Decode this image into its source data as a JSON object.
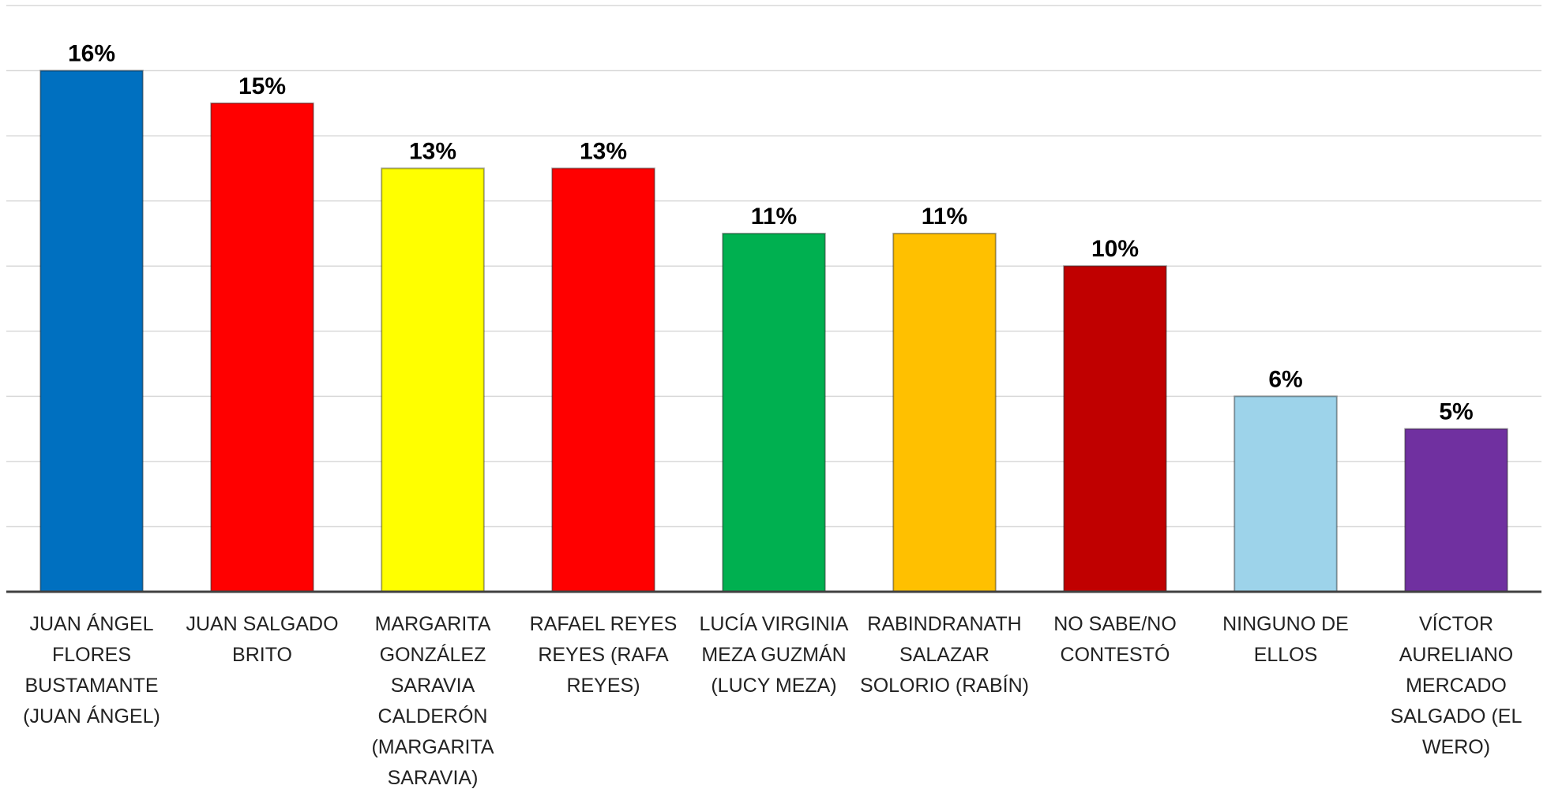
{
  "chart_data": {
    "type": "bar",
    "categories": [
      "JUAN ÁNGEL FLORES BUSTAMANTE (JUAN ÁNGEL)",
      "JUAN SALGADO BRITO",
      "MARGARITA GONZÁLEZ SARAVIA CALDERÓN (MARGARITA SARAVIA)",
      "RAFAEL REYES REYES (RAFA REYES)",
      "LUCÍA VIRGINIA MEZA GUZMÁN (LUCY MEZA)",
      "RABINDRANATH SALAZAR SOLORIO (RABÍN)",
      "NO SABE/NO CONTESTÓ",
      "NINGUNO DE ELLOS",
      "VÍCTOR AURELIANO MERCADO SALGADO (EL WERO)"
    ],
    "values": [
      16,
      15,
      13,
      13,
      11,
      11,
      10,
      6,
      5
    ],
    "value_labels": [
      "16%",
      "15%",
      "13%",
      "13%",
      "11%",
      "11%",
      "10%",
      "6%",
      "5%"
    ],
    "colors": [
      "#0070c0",
      "#ff0000",
      "#ffff00",
      "#ff0000",
      "#00b050",
      "#ffc000",
      "#c00000",
      "#9dd3ea",
      "#7030a0"
    ],
    "ylim": [
      0,
      18
    ],
    "yticks": [
      0,
      2,
      4,
      6,
      8,
      10,
      12,
      14,
      16,
      18
    ],
    "grid": true
  }
}
